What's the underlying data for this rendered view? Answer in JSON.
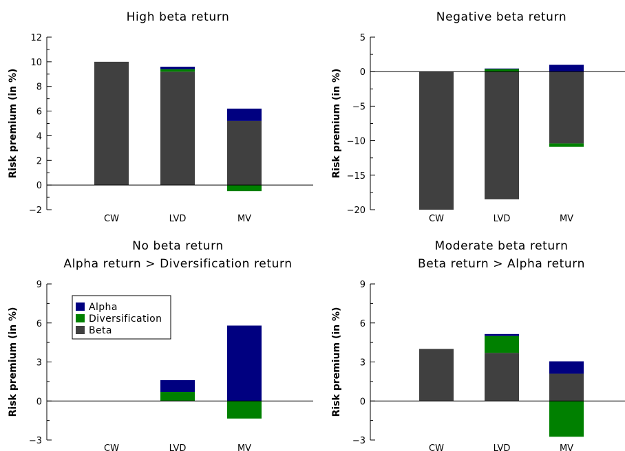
{
  "colors": {
    "Alpha": "#000080",
    "Diversification": "#008000",
    "Beta": "#404040"
  },
  "legend": {
    "items": [
      "Alpha",
      "Diversification",
      "Beta"
    ],
    "placement": "top-left of bottom-left panel"
  },
  "chart_data": [
    {
      "type": "bar",
      "stacked": true,
      "title": [
        "High beta return"
      ],
      "ylabel": "Risk premium (in %)",
      "ylim": [
        -2,
        12
      ],
      "yticks": [
        -2,
        0,
        2,
        4,
        6,
        8,
        10,
        12
      ],
      "ytick_labels": [
        "−2",
        "0",
        "2",
        "4",
        "6",
        "8",
        "10",
        "12"
      ],
      "categories": [
        "CW",
        "LVD",
        "MV"
      ],
      "series": [
        {
          "name": "Beta",
          "values": [
            10.0,
            9.2,
            5.2
          ]
        },
        {
          "name": "Diversification",
          "values": [
            0.0,
            0.2,
            -0.5
          ]
        },
        {
          "name": "Alpha",
          "values": [
            0.0,
            0.2,
            1.0
          ]
        }
      ]
    },
    {
      "type": "bar",
      "stacked": true,
      "title": [
        "Negative beta return"
      ],
      "ylabel": "Risk premium (in %)",
      "ylim": [
        -20,
        5
      ],
      "yticks": [
        -20,
        -15,
        -10,
        -5,
        0,
        5
      ],
      "ytick_labels": [
        "−20",
        "−15",
        "−10",
        "−5",
        "0",
        "5"
      ],
      "categories": [
        "CW",
        "LVD",
        "MV"
      ],
      "series": [
        {
          "name": "Beta",
          "values": [
            -20.0,
            -18.5,
            -10.4
          ]
        },
        {
          "name": "Diversification",
          "values": [
            0.0,
            0.4,
            -0.5
          ]
        },
        {
          "name": "Alpha",
          "values": [
            0.0,
            0.05,
            1.0
          ]
        }
      ]
    },
    {
      "type": "bar",
      "stacked": true,
      "title": [
        "No beta return",
        "Alpha return > Diversification return"
      ],
      "ylabel": "Risk premium (in %)",
      "ylim": [
        -3,
        9
      ],
      "yticks": [
        -3,
        0,
        3,
        6,
        9
      ],
      "ytick_labels": [
        "−3",
        "0",
        "3",
        "6",
        "9"
      ],
      "categories": [
        "CW",
        "LVD",
        "MV"
      ],
      "series": [
        {
          "name": "Beta",
          "values": [
            0.0,
            0.0,
            0.0
          ]
        },
        {
          "name": "Diversification",
          "values": [
            0.0,
            0.7,
            -1.35
          ]
        },
        {
          "name": "Alpha",
          "values": [
            0.0,
            0.9,
            5.8
          ]
        }
      ]
    },
    {
      "type": "bar",
      "stacked": true,
      "title": [
        "Moderate beta return",
        "Beta return > Alpha return"
      ],
      "ylabel": "Risk premium (in %)",
      "ylim": [
        -3,
        9
      ],
      "yticks": [
        -3,
        0,
        3,
        6,
        9
      ],
      "ytick_labels": [
        "−3",
        "0",
        "3",
        "6",
        "9"
      ],
      "categories": [
        "CW",
        "LVD",
        "MV"
      ],
      "series": [
        {
          "name": "Beta",
          "values": [
            4.0,
            3.7,
            2.1
          ]
        },
        {
          "name": "Diversification",
          "values": [
            0.0,
            1.3,
            -2.75
          ]
        },
        {
          "name": "Alpha",
          "values": [
            0.0,
            0.15,
            0.95
          ]
        }
      ]
    }
  ]
}
